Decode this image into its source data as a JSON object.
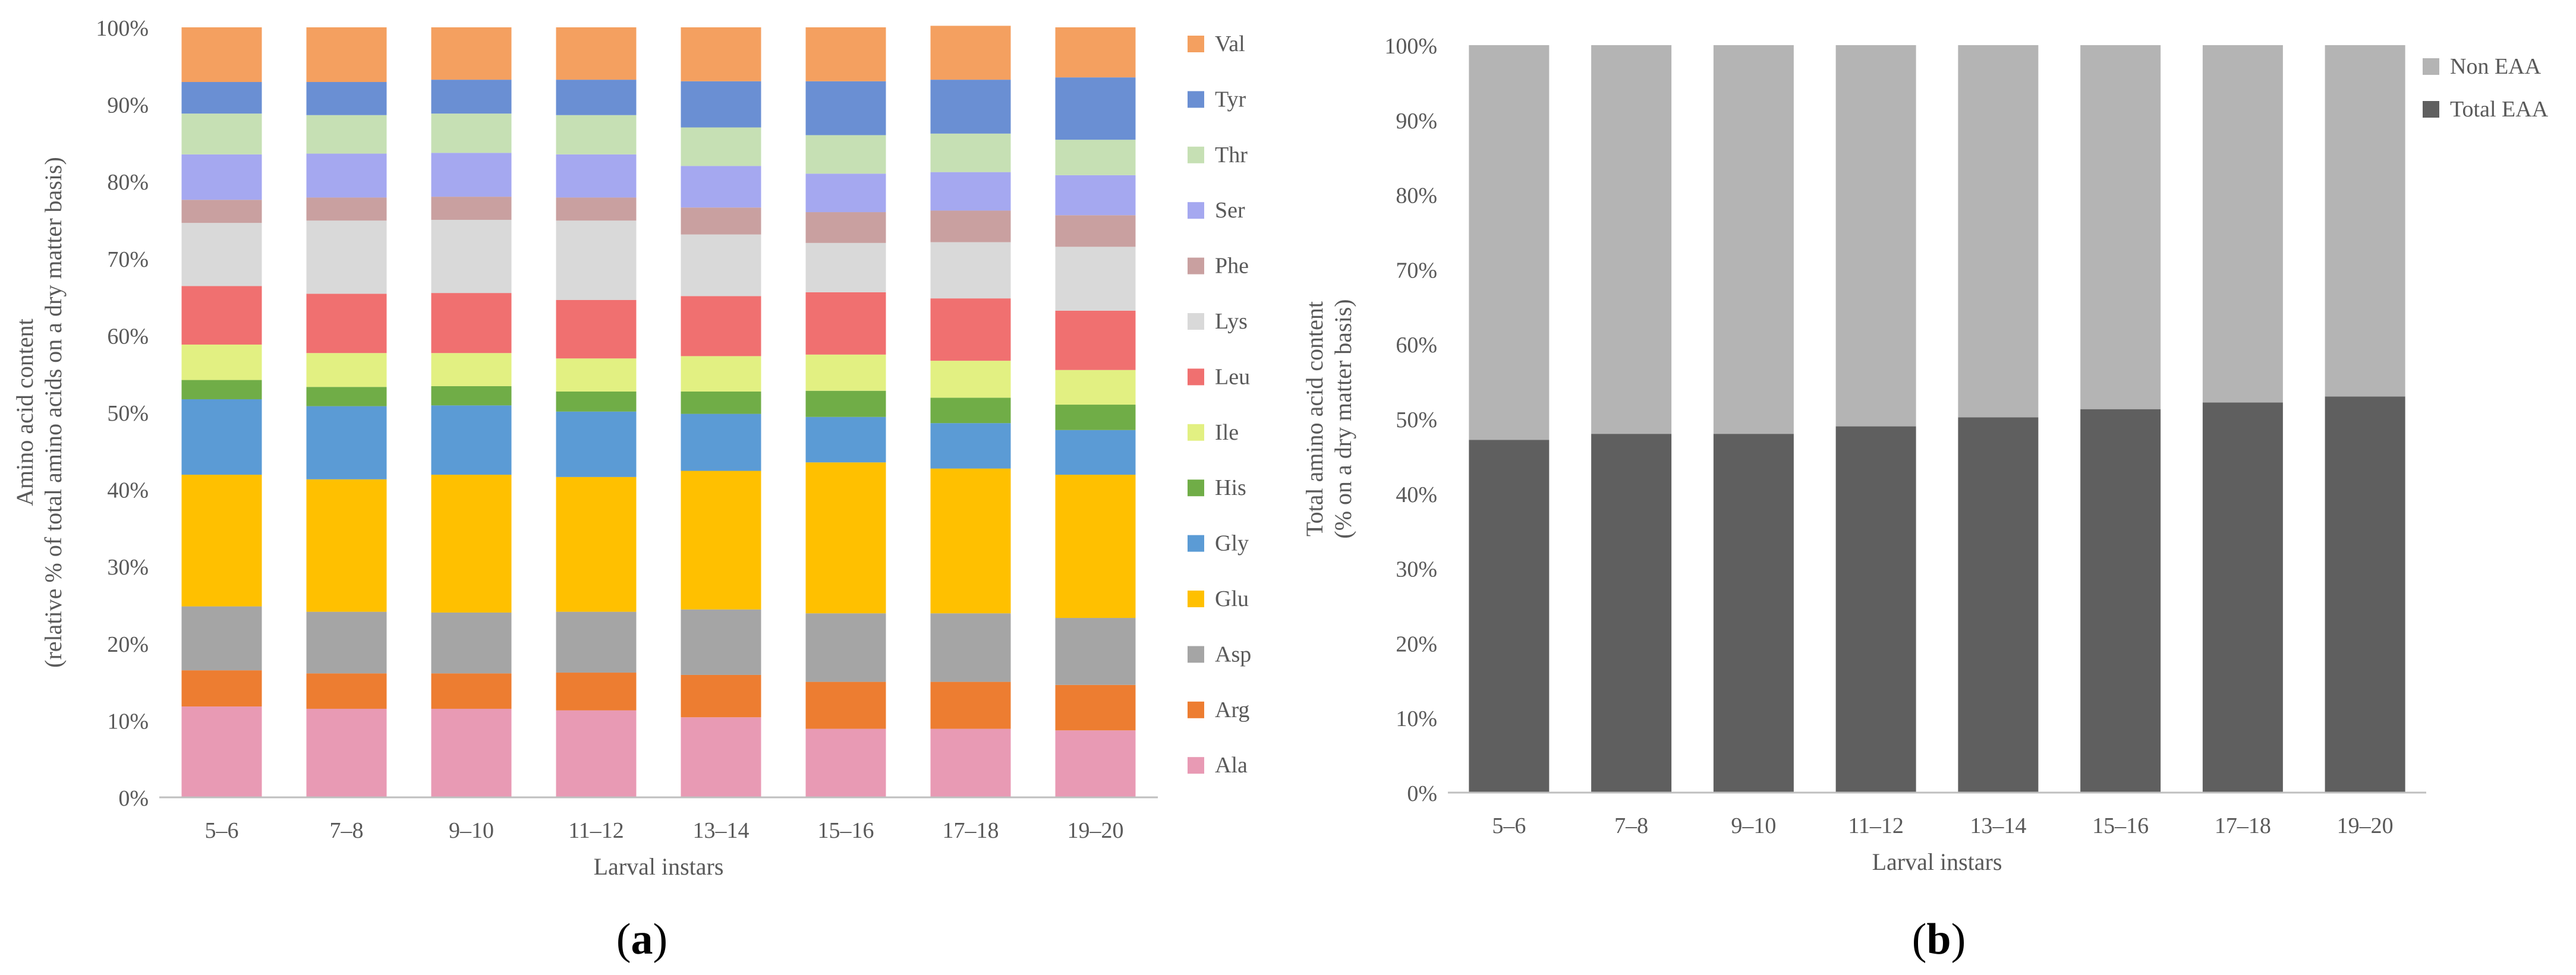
{
  "chart_data": [
    {
      "type": "bar",
      "stacked": true,
      "panel_label": "a",
      "categories": [
        "5–6",
        "7–8",
        "9–10",
        "11–12",
        "13–14",
        "15–16",
        "17–18",
        "19–20"
      ],
      "xlabel": "Larval instars",
      "ylabel": [
        "Amino acid content",
        "(relative % of total amino acids on a dry matter basis)"
      ],
      "ylim": [
        0,
        100
      ],
      "yticks": [
        "0%",
        "10%",
        "20%",
        "30%",
        "40%",
        "50%",
        "60%",
        "70%",
        "80%",
        "90%",
        "100%"
      ],
      "legend_position": "right",
      "series": [
        {
          "name": "Ala",
          "color": "#E89AB4",
          "values": [
            11.8,
            11.5,
            11.5,
            11.3,
            10.4,
            8.9,
            8.9,
            8.7
          ]
        },
        {
          "name": "Arg",
          "color": "#ED7D31",
          "values": [
            4.7,
            4.6,
            4.6,
            4.9,
            5.5,
            6.1,
            6.1,
            5.9
          ]
        },
        {
          "name": "Asp",
          "color": "#A5A5A5",
          "values": [
            8.3,
            8.0,
            7.9,
            7.9,
            8.5,
            8.9,
            8.9,
            8.7
          ]
        },
        {
          "name": "Glu",
          "color": "#FFC000",
          "values": [
            17.1,
            17.2,
            17.9,
            17.5,
            18.0,
            19.6,
            18.8,
            18.6
          ]
        },
        {
          "name": "Gly",
          "color": "#5B9BD5",
          "values": [
            9.8,
            9.5,
            9.0,
            8.5,
            7.4,
            5.9,
            5.9,
            5.8
          ]
        },
        {
          "name": "His",
          "color": "#70AD47",
          "values": [
            2.5,
            2.5,
            2.5,
            2.6,
            2.9,
            3.4,
            3.3,
            3.3
          ]
        },
        {
          "name": "Ile",
          "color": "#E2F082",
          "values": [
            4.6,
            4.4,
            4.3,
            4.3,
            4.6,
            4.7,
            4.8,
            4.5
          ]
        },
        {
          "name": "Leu",
          "color": "#F07070",
          "values": [
            7.6,
            7.7,
            7.8,
            7.6,
            7.8,
            8.1,
            8.1,
            7.7
          ]
        },
        {
          "name": "Lys",
          "color": "#D9D9D9",
          "values": [
            8.2,
            9.5,
            9.5,
            10.3,
            8.0,
            6.4,
            7.3,
            8.3
          ]
        },
        {
          "name": "Phe",
          "color": "#C9A0A0",
          "values": [
            3.0,
            3.0,
            3.0,
            3.0,
            3.5,
            4.0,
            4.1,
            4.1
          ]
        },
        {
          "name": "Ser",
          "color": "#A5A8F0",
          "values": [
            5.9,
            5.7,
            5.7,
            5.6,
            5.4,
            5.0,
            5.0,
            5.2
          ]
        },
        {
          "name": "Thr",
          "color": "#C6E0B4",
          "values": [
            5.3,
            5.0,
            5.1,
            5.1,
            5.0,
            5.0,
            5.0,
            4.6
          ]
        },
        {
          "name": "Tyr",
          "color": "#6A8FD3",
          "values": [
            4.1,
            4.3,
            4.4,
            4.6,
            6.0,
            7.0,
            7.0,
            8.1
          ]
        },
        {
          "name": "Val",
          "color": "#F4A060",
          "values": [
            7.1,
            7.1,
            6.8,
            6.8,
            7.0,
            7.0,
            7.0,
            6.5
          ]
        }
      ]
    },
    {
      "type": "bar",
      "stacked": true,
      "panel_label": "b",
      "categories": [
        "5–6",
        "7–8",
        "9–10",
        "11–12",
        "13–14",
        "15–16",
        "17–18",
        "19–20"
      ],
      "xlabel": "Larval instars",
      "ylabel": [
        "Total amino acid content",
        "(% on a dry matter basis)"
      ],
      "ylim": [
        0,
        100
      ],
      "yticks": [
        "0%",
        "10%",
        "20%",
        "30%",
        "40%",
        "50%",
        "60%",
        "70%",
        "80%",
        "90%",
        "100%"
      ],
      "legend_position": "top-right",
      "series": [
        {
          "name": "Total EAA",
          "color": "#5F5F5F",
          "values": [
            47.2,
            48.0,
            48.0,
            49.0,
            50.2,
            51.3,
            52.2,
            53.0
          ]
        },
        {
          "name": "Non EAA",
          "color": "#B4B4B4",
          "values": [
            52.8,
            52.0,
            52.0,
            51.0,
            49.8,
            48.7,
            47.8,
            47.0
          ]
        }
      ],
      "legend_order": [
        "Non EAA",
        "Total EAA"
      ]
    }
  ]
}
